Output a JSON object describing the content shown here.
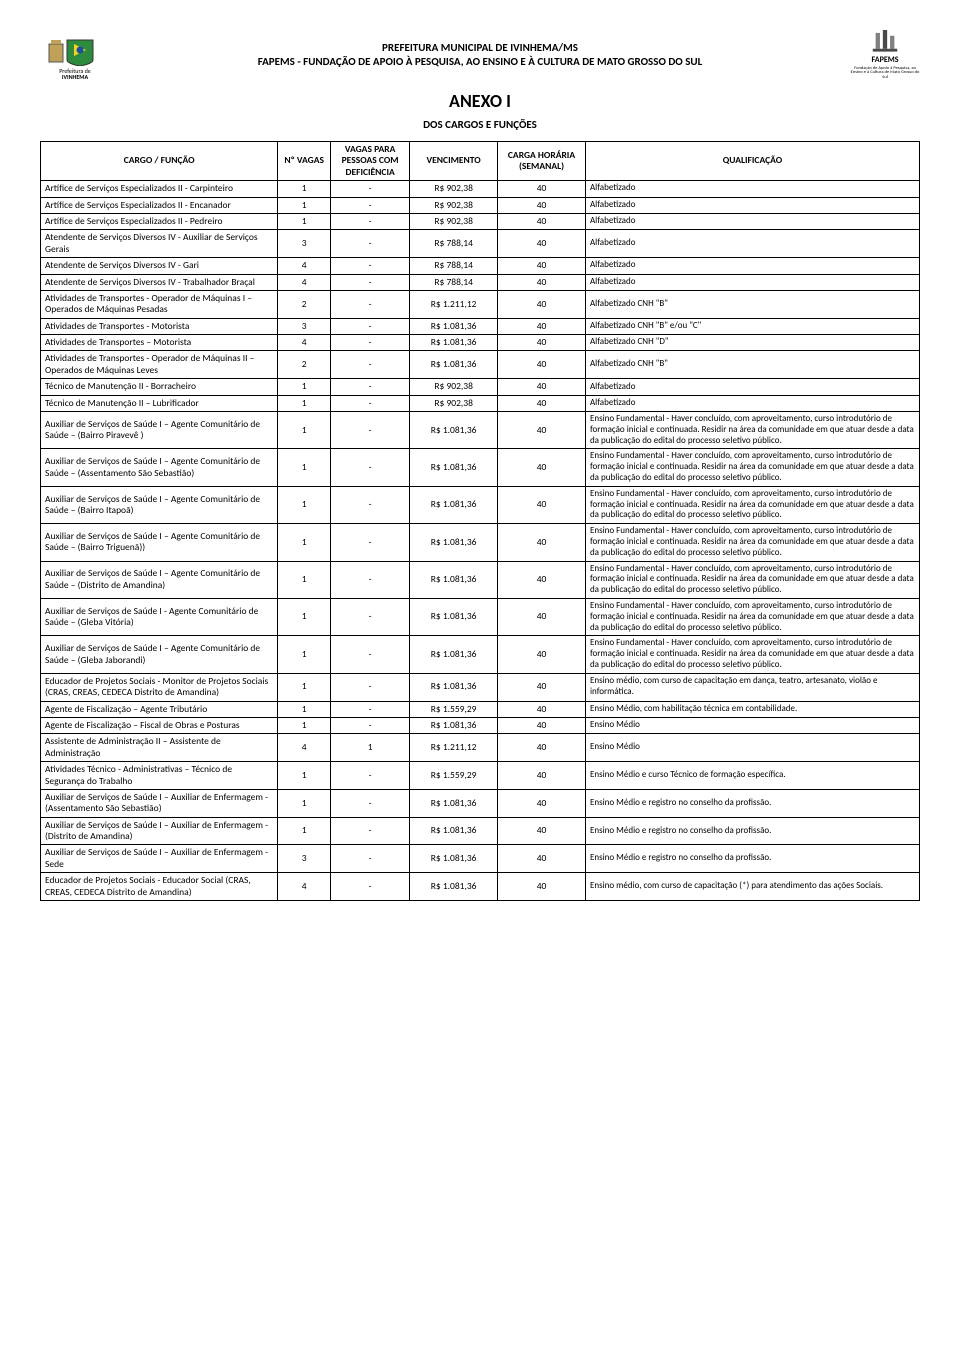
{
  "header": {
    "prefeitura_label": "Prefeitura de",
    "city": "IVINHEMA",
    "line1": "PREFEITURA MUNICIPAL DE IVINHEMA/MS",
    "line2": "FAPEMS - FUNDAÇÃO DE APOIO À PESQUISA, AO ENSINO E À CULTURA DE MATO GROSSO DO SUL",
    "logo_right_label": "FAPEMS",
    "logo_right_caption": "Fundação de Apoio à Pesquisa, ao Ensino e à Cultura de Mato Grosso do Sul"
  },
  "title": "ANEXO I",
  "subtitle": "DOS CARGOS E FUNÇÕES",
  "colors": {
    "text": "#000000",
    "border": "#000000",
    "bg": "#ffffff",
    "flag_green": "#2e8b3e",
    "flag_yellow": "#f6d21a",
    "flag_blue": "#1a4ea1",
    "logo_right_gray": "#808080",
    "logo_right_dark": "#4a4a4a"
  },
  "columns": [
    "CARGO / FUNÇÃO",
    "Nº VAGAS",
    "VAGAS PARA PESSOAS COM DEFICIÊNCIA",
    "VENCIMENTO",
    "CARGA HORÁRIA (SEMANAL)",
    "QUALIFICAÇÃO"
  ],
  "rows": [
    {
      "cargo": "Artífice de Serviços Especializados II - Carpinteiro",
      "vagas": "1",
      "pcd": "-",
      "venc": "R$ 902,38",
      "carga": "40",
      "qual": "Alfabetizado"
    },
    {
      "cargo": "Artífice de Serviços Especializados II - Encanador",
      "vagas": "1",
      "pcd": "-",
      "venc": "R$ 902,38",
      "carga": "40",
      "qual": "Alfabetizado"
    },
    {
      "cargo": "Artífice de Serviços Especializados II - Pedreiro",
      "vagas": "1",
      "pcd": "-",
      "venc": "R$ 902,38",
      "carga": "40",
      "qual": "Alfabetizado"
    },
    {
      "cargo": "Atendente de Serviços Diversos IV - Auxiliar de Serviços Gerais",
      "vagas": "3",
      "pcd": "-",
      "venc": "R$ 788,14",
      "carga": "40",
      "qual": "Alfabetizado"
    },
    {
      "cargo": "Atendente de Serviços Diversos IV - Gari",
      "vagas": "4",
      "pcd": "-",
      "venc": "R$ 788,14",
      "carga": "40",
      "qual": "Alfabetizado"
    },
    {
      "cargo": "Atendente de Serviços Diversos IV - Trabalhador Braçal",
      "vagas": "4",
      "pcd": "-",
      "venc": "R$ 788,14",
      "carga": "40",
      "qual": "Alfabetizado"
    },
    {
      "cargo": "Atividades de Transportes - Operador de Máquinas I – Operados de Máquinas Pesadas",
      "vagas": "2",
      "pcd": "-",
      "venc": "R$ 1.211,12",
      "carga": "40",
      "qual": "Alfabetizado CNH \"B\""
    },
    {
      "cargo": "Atividades de Transportes - Motorista",
      "vagas": "3",
      "pcd": "-",
      "venc": "R$ 1.081,36",
      "carga": "40",
      "qual": "Alfabetizado CNH \"B\" e/ou \"C\""
    },
    {
      "cargo": "Atividades de Transportes – Motorista",
      "vagas": "4",
      "pcd": "-",
      "venc": "R$ 1.081,36",
      "carga": "40",
      "qual": "Alfabetizado CNH \"D\""
    },
    {
      "cargo": "Atividades de Transportes - Operador de Máquinas II – Operados de Máquinas Leves",
      "vagas": "2",
      "pcd": "-",
      "venc": "R$ 1.081,36",
      "carga": "40",
      "qual": "Alfabetizado CNH \"B\""
    },
    {
      "cargo": "Técnico de Manutenção II - Borracheiro",
      "vagas": "1",
      "pcd": "-",
      "venc": "R$ 902,38",
      "carga": "40",
      "qual": "Alfabetizado"
    },
    {
      "cargo": "Técnico de Manutenção II – Lubrificador",
      "vagas": "1",
      "pcd": "-",
      "venc": "R$ 902,38",
      "carga": "40",
      "qual": "Alfabetizado"
    },
    {
      "cargo": "Auxiliar de Serviços de Saúde I – Agente Comunitário de Saúde – (Bairro Piravevê )",
      "vagas": "1",
      "pcd": "-",
      "venc": "R$ 1.081,36",
      "carga": "40",
      "qual": "Ensino Fundamental - Haver concluído, com aproveitamento, curso introdutório de formação inicial e continuada. Residir na área da comunidade em que atuar desde a data da publicação do edital do processo seletivo público."
    },
    {
      "cargo": "Auxiliar de Serviços de Saúde I – Agente Comunitário de Saúde – (Assentamento São Sebastião)",
      "vagas": "1",
      "pcd": "-",
      "venc": "R$ 1.081,36",
      "carga": "40",
      "qual": "Ensino Fundamental - Haver concluído, com aproveitamento, curso introdutório de formação inicial e continuada. Residir na área da comunidade em que atuar desde a data da publicação do edital do processo seletivo público."
    },
    {
      "cargo": "Auxiliar de Serviços de Saúde I – Agente Comunitário de Saúde – (Bairro Itapoã)",
      "vagas": "1",
      "pcd": "-",
      "venc": "R$ 1.081,36",
      "carga": "40",
      "qual": "Ensino Fundamental - Haver concluído, com aproveitamento, curso introdutório de formação inicial e continuada. Residir na área da comunidade em que atuar desde a data da publicação do edital do processo seletivo público."
    },
    {
      "cargo": "Auxiliar de Serviços de Saúde I – Agente Comunitário de Saúde – (Bairro Triguenã))",
      "vagas": "1",
      "pcd": "-",
      "venc": "R$ 1.081,36",
      "carga": "40",
      "qual": "Ensino Fundamental - Haver concluído, com aproveitamento, curso introdutório de formação inicial e continuada. Residir na área da comunidade em que atuar desde a data da publicação do edital do processo seletivo público."
    },
    {
      "cargo": "Auxiliar de Serviços de Saúde I – Agente Comunitário de Saúde – (Distrito de Amandina)",
      "vagas": "1",
      "pcd": "-",
      "venc": "R$ 1.081,36",
      "carga": "40",
      "qual": "Ensino Fundamental - Haver concluído, com aproveitamento, curso introdutório de formação inicial e continuada. Residir na área da comunidade em que atuar desde a data da publicação do edital do processo seletivo público."
    },
    {
      "cargo": "Auxiliar de Serviços de Saúde I - Agente Comunitário de Saúde – (Gleba Vitória)",
      "vagas": "1",
      "pcd": "-",
      "venc": "R$ 1.081,36",
      "carga": "40",
      "qual": "Ensino Fundamental - Haver concluído, com aproveitamento, curso introdutório de formação inicial e continuada. Residir na área da comunidade em que atuar desde a data da publicação do edital do processo seletivo público."
    },
    {
      "cargo": "Auxiliar de Serviços de Saúde I – Agente Comunitário de Saúde – (Gleba Jaborandi)",
      "vagas": "1",
      "pcd": "-",
      "venc": "R$ 1.081,36",
      "carga": "40",
      "qual": "Ensino Fundamental - Haver concluído, com aproveitamento, curso introdutório de formação inicial e continuada. Residir na área da comunidade em que atuar desde a data da publicação do edital do processo seletivo público."
    },
    {
      "cargo": "Educador de Projetos Sociais - Monitor de Projetos Sociais (CRAS, CREAS, CEDECA Distrito de Amandina)",
      "vagas": "1",
      "pcd": "-",
      "venc": "R$ 1.081,36",
      "carga": "40",
      "qual": "Ensino médio, com curso de capacitação em dança, teatro, artesanato, violão e informática."
    },
    {
      "cargo": "Agente de Fiscalização – Agente Tributário",
      "vagas": "1",
      "pcd": "-",
      "venc": "R$ 1.559,29",
      "carga": "40",
      "qual": "Ensino Médio, com habilitação técnica em contabilidade."
    },
    {
      "cargo": "Agente de Fiscalização – Fiscal de Obras e Posturas",
      "vagas": "1",
      "pcd": "-",
      "venc": "R$ 1.081,36",
      "carga": "40",
      "qual": "Ensino Médio"
    },
    {
      "cargo": "Assistente de Administração II – Assistente de Administração",
      "vagas": "4",
      "pcd": "1",
      "venc": "R$ 1.211,12",
      "carga": "40",
      "qual": "Ensino Médio"
    },
    {
      "cargo": "Atividades Técnico - Administrativas – Técnico de Segurança do Trabalho",
      "vagas": "1",
      "pcd": "-",
      "venc": "R$ 1.559,29",
      "carga": "40",
      "qual": "Ensino Médio e curso Técnico de formação específica."
    },
    {
      "cargo": "Auxiliar de Serviços de Saúde I – Auxiliar de Enfermagem - (Assentamento São Sebastião)",
      "vagas": "1",
      "pcd": "-",
      "venc": "R$ 1.081,36",
      "carga": "40",
      "qual": "Ensino Médio e registro no conselho da profissão."
    },
    {
      "cargo": "Auxiliar de Serviços de Saúde I – Auxiliar de Enfermagem - (Distrito de Amandina)",
      "vagas": "1",
      "pcd": "-",
      "venc": "R$ 1.081,36",
      "carga": "40",
      "qual": "Ensino Médio e registro no conselho da profissão."
    },
    {
      "cargo": "Auxiliar de Serviços de Saúde I – Auxiliar de Enfermagem - Sede",
      "vagas": "3",
      "pcd": "-",
      "venc": "R$ 1.081,36",
      "carga": "40",
      "qual": "Ensino Médio e registro no conselho da profissão."
    },
    {
      "cargo": "Educador de Projetos Sociais - Educador Social (CRAS, CREAS, CEDECA Distrito de Amandina)",
      "vagas": "4",
      "pcd": "-",
      "venc": "R$ 1.081,36",
      "carga": "40",
      "qual": "Ensino médio, com curso de capacitação (*) para atendimento das ações Sociais."
    }
  ]
}
